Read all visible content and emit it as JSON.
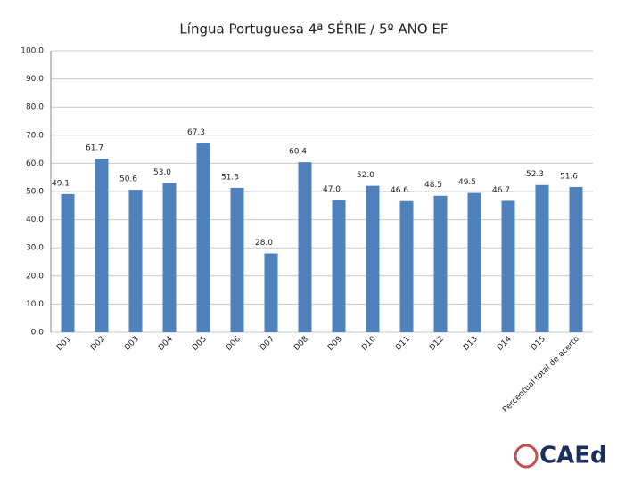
{
  "chart_data": {
    "type": "bar",
    "title": "Língua Portuguesa 4ª SÉRIE / 5º ANO EF",
    "categories": [
      "D01",
      "D02",
      "D03",
      "D04",
      "D05",
      "D06",
      "D07",
      "D08",
      "D09",
      "D10",
      "D11",
      "D12",
      "D13",
      "D14",
      "D15",
      "Percentual total de acerto"
    ],
    "values": [
      49.1,
      61.7,
      50.6,
      53.0,
      67.3,
      51.3,
      28.0,
      60.4,
      47.0,
      52.0,
      46.6,
      48.5,
      49.5,
      46.7,
      52.3,
      51.6
    ],
    "value_labels": [
      "49.1",
      "61.7",
      "50.6",
      "53.0",
      "67.3",
      "51.3",
      "28.0",
      "60.4",
      "47.0",
      "52.0",
      "46.6",
      "48.5",
      "49.5",
      "46.7",
      "52.3",
      "51.6"
    ],
    "color": "#4f81bd",
    "ylim": [
      0,
      100
    ],
    "yticks": [
      {
        "value": 0,
        "label": "0.0"
      },
      {
        "value": 10,
        "label": "10.0"
      },
      {
        "value": 20,
        "label": "20.0"
      },
      {
        "value": 30,
        "label": "30.0"
      },
      {
        "value": 40,
        "label": "40.0"
      },
      {
        "value": 50,
        "label": "50.0"
      },
      {
        "value": 60,
        "label": "60.0"
      },
      {
        "value": 70,
        "label": "70.0"
      },
      {
        "value": 80,
        "label": "80.0"
      },
      {
        "value": 90,
        "label": "90.0"
      },
      {
        "value": 100,
        "label": "100.0"
      }
    ],
    "grid": true
  },
  "logo": "CAEd"
}
